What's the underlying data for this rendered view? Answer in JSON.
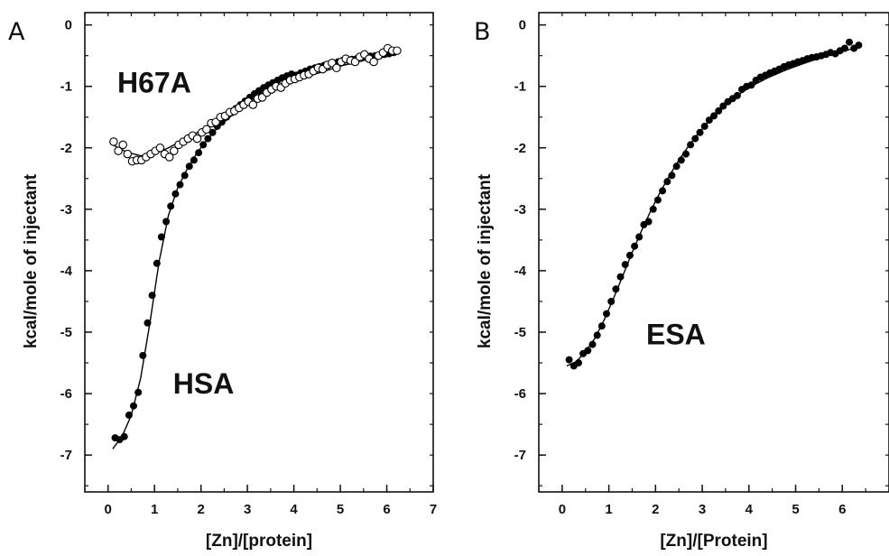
{
  "chart_data": [
    {
      "type": "scatter",
      "panel_label": "A",
      "xlabel": "[Zn]/[protein]",
      "ylabel": "kcal/mole of injectant",
      "xlim": [
        -0.5,
        7
      ],
      "ylim": [
        -7.6,
        0.2
      ],
      "xticks": [
        0,
        1,
        2,
        3,
        4,
        5,
        6,
        7
      ],
      "yticks": [
        0,
        -1,
        -2,
        -3,
        -4,
        -5,
        -6,
        -7
      ],
      "annotations": [
        {
          "text": "H67A",
          "x": 0.2,
          "y": -1.1
        },
        {
          "text": "HSA",
          "x": 1.4,
          "y": -6.0
        }
      ],
      "series": [
        {
          "marker": "filled-circle",
          "color": "#000000",
          "x": [
            0.15,
            0.25,
            0.35,
            0.45,
            0.55,
            0.65,
            0.75,
            0.85,
            0.95,
            1.05,
            1.15,
            1.25,
            1.35,
            1.45,
            1.55,
            1.65,
            1.75,
            1.85,
            1.95,
            2.05,
            2.15,
            2.25,
            2.35,
            2.45,
            2.55,
            2.65,
            2.75,
            2.85,
            2.95,
            3.05,
            3.15,
            3.25,
            3.35,
            3.45,
            3.55,
            3.65,
            3.75,
            3.85,
            3.95,
            4.05,
            4.15,
            4.25,
            4.35,
            4.45,
            4.55,
            4.65,
            4.75,
            4.85,
            4.95,
            5.05,
            5.15,
            5.25,
            5.35,
            5.45,
            5.55,
            5.65,
            5.75,
            5.85,
            5.95,
            6.05,
            6.15
          ],
          "y": [
            -6.72,
            -6.75,
            -6.7,
            -6.35,
            -6.2,
            -5.98,
            -5.38,
            -4.85,
            -4.4,
            -3.88,
            -3.45,
            -3.2,
            -2.95,
            -2.75,
            -2.6,
            -2.45,
            -2.3,
            -2.2,
            -2.08,
            -1.95,
            -1.85,
            -1.75,
            -1.65,
            -1.58,
            -1.5,
            -1.43,
            -1.36,
            -1.3,
            -1.24,
            -1.18,
            -1.12,
            -1.07,
            -1.02,
            -0.98,
            -0.94,
            -0.9,
            -0.86,
            -0.83,
            -0.8,
            -0.82,
            -0.78,
            -0.75,
            -0.72,
            -0.7,
            -0.68,
            -0.66,
            -0.65,
            -0.62,
            -0.6,
            -0.58,
            -0.57,
            -0.56,
            -0.55,
            -0.54,
            -0.52,
            -0.51,
            -0.5,
            -0.5,
            -0.48,
            -0.47,
            -0.45
          ]
        },
        {
          "marker": "open-circle",
          "color": "#000000",
          "x": [
            0.12,
            0.22,
            0.32,
            0.42,
            0.52,
            0.62,
            0.72,
            0.82,
            0.92,
            1.02,
            1.12,
            1.22,
            1.32,
            1.42,
            1.52,
            1.62,
            1.72,
            1.82,
            1.92,
            2.02,
            2.12,
            2.22,
            2.32,
            2.42,
            2.52,
            2.62,
            2.72,
            2.82,
            2.92,
            3.02,
            3.12,
            3.22,
            3.32,
            3.42,
            3.52,
            3.62,
            3.72,
            3.82,
            3.92,
            4.02,
            4.12,
            4.22,
            4.32,
            4.42,
            4.52,
            4.62,
            4.72,
            4.82,
            4.92,
            5.02,
            5.12,
            5.22,
            5.32,
            5.42,
            5.52,
            5.62,
            5.72,
            5.82,
            5.92,
            6.02,
            6.12,
            6.22
          ],
          "y": [
            -1.9,
            -2.05,
            -1.95,
            -2.1,
            -2.22,
            -2.2,
            -2.2,
            -2.15,
            -2.1,
            -2.05,
            -2.0,
            -2.1,
            -2.15,
            -2.05,
            -1.95,
            -1.9,
            -1.85,
            -1.8,
            -1.85,
            -1.75,
            -1.7,
            -1.6,
            -1.58,
            -1.5,
            -1.48,
            -1.42,
            -1.4,
            -1.35,
            -1.3,
            -1.25,
            -1.3,
            -1.2,
            -1.18,
            -1.1,
            -1.05,
            -1.0,
            -1.02,
            -0.95,
            -0.9,
            -0.88,
            -0.85,
            -0.82,
            -0.8,
            -0.75,
            -0.7,
            -0.72,
            -0.65,
            -0.62,
            -0.7,
            -0.6,
            -0.55,
            -0.58,
            -0.6,
            -0.52,
            -0.48,
            -0.55,
            -0.6,
            -0.5,
            -0.45,
            -0.38,
            -0.42,
            -0.42
          ]
        }
      ],
      "fit_curves": [
        {
          "color": "#000000",
          "x": [
            0.1,
            0.3,
            0.5,
            0.7,
            0.9,
            1.1,
            1.3,
            1.5,
            1.7,
            1.9,
            2.1,
            2.3,
            2.5,
            2.7,
            3.0,
            3.3,
            3.6,
            4.0,
            4.4,
            4.8,
            5.2,
            5.6,
            6.0,
            6.25
          ],
          "y": [
            -6.9,
            -6.7,
            -6.35,
            -5.75,
            -4.85,
            -3.85,
            -3.1,
            -2.65,
            -2.35,
            -2.1,
            -1.9,
            -1.72,
            -1.58,
            -1.45,
            -1.27,
            -1.12,
            -1.0,
            -0.86,
            -0.76,
            -0.67,
            -0.6,
            -0.54,
            -0.49,
            -0.46
          ]
        },
        {
          "color": "#000000",
          "x": [
            0.1,
            0.4,
            0.7,
            1.0,
            1.3,
            1.6,
            1.9,
            2.2,
            2.5,
            2.8,
            3.1,
            3.5,
            4.0,
            4.5,
            5.0,
            5.5,
            6.0,
            6.25
          ],
          "y": [
            -1.95,
            -2.07,
            -2.13,
            -2.1,
            -2.0,
            -1.88,
            -1.76,
            -1.63,
            -1.5,
            -1.38,
            -1.25,
            -1.1,
            -0.93,
            -0.79,
            -0.67,
            -0.58,
            -0.49,
            -0.45
          ]
        }
      ]
    },
    {
      "type": "scatter",
      "panel_label": "B",
      "xlabel": "[Zn]/[Protein]",
      "ylabel": "kcal/mole of injectant",
      "xlim": [
        -0.5,
        7
      ],
      "ylim": [
        -7.6,
        0.2
      ],
      "xticks": [
        0,
        1,
        2,
        3,
        4,
        5,
        6
      ],
      "yticks": [
        0,
        -1,
        -2,
        -3,
        -4,
        -5,
        -6,
        -7
      ],
      "annotations": [
        {
          "text": "ESA",
          "x": 1.8,
          "y": -5.2
        }
      ],
      "series": [
        {
          "marker": "filled-circle",
          "color": "#000000",
          "x": [
            0.15,
            0.25,
            0.35,
            0.45,
            0.55,
            0.65,
            0.75,
            0.85,
            0.95,
            1.05,
            1.15,
            1.25,
            1.35,
            1.45,
            1.55,
            1.65,
            1.75,
            1.85,
            1.95,
            2.05,
            2.15,
            2.25,
            2.35,
            2.45,
            2.55,
            2.65,
            2.75,
            2.85,
            2.95,
            3.05,
            3.15,
            3.25,
            3.35,
            3.45,
            3.55,
            3.65,
            3.75,
            3.85,
            3.95,
            4.05,
            4.15,
            4.25,
            4.35,
            4.45,
            4.55,
            4.65,
            4.75,
            4.85,
            4.95,
            5.05,
            5.15,
            5.25,
            5.35,
            5.45,
            5.55,
            5.65,
            5.75,
            5.85,
            5.95,
            6.05,
            6.15,
            6.25,
            6.35
          ],
          "y": [
            -5.45,
            -5.55,
            -5.5,
            -5.35,
            -5.3,
            -5.2,
            -5.05,
            -4.9,
            -4.7,
            -4.5,
            -4.3,
            -4.1,
            -3.9,
            -3.75,
            -3.6,
            -3.45,
            -3.25,
            -3.2,
            -3.0,
            -2.85,
            -2.7,
            -2.55,
            -2.45,
            -2.3,
            -2.2,
            -2.1,
            -1.95,
            -1.85,
            -1.75,
            -1.65,
            -1.55,
            -1.48,
            -1.4,
            -1.32,
            -1.25,
            -1.2,
            -1.15,
            -1.05,
            -1.0,
            -0.98,
            -0.9,
            -0.85,
            -0.82,
            -0.78,
            -0.75,
            -0.72,
            -0.68,
            -0.65,
            -0.63,
            -0.6,
            -0.58,
            -0.55,
            -0.53,
            -0.52,
            -0.5,
            -0.48,
            -0.45,
            -0.47,
            -0.42,
            -0.38,
            -0.28,
            -0.38,
            -0.33
          ]
        }
      ],
      "fit_curves": [
        {
          "color": "#000000",
          "x": [
            0.1,
            0.3,
            0.5,
            0.7,
            0.9,
            1.1,
            1.3,
            1.5,
            1.7,
            1.9,
            2.1,
            2.3,
            2.5,
            2.7,
            2.9,
            3.2,
            3.5,
            3.8,
            4.1,
            4.4,
            4.8,
            5.2,
            5.6,
            6.0,
            6.4
          ],
          "y": [
            -5.55,
            -5.48,
            -5.32,
            -5.1,
            -4.8,
            -4.45,
            -4.08,
            -3.7,
            -3.35,
            -3.02,
            -2.72,
            -2.45,
            -2.2,
            -1.98,
            -1.78,
            -1.52,
            -1.3,
            -1.12,
            -0.98,
            -0.86,
            -0.73,
            -0.62,
            -0.52,
            -0.43,
            -0.35
          ]
        }
      ]
    }
  ]
}
